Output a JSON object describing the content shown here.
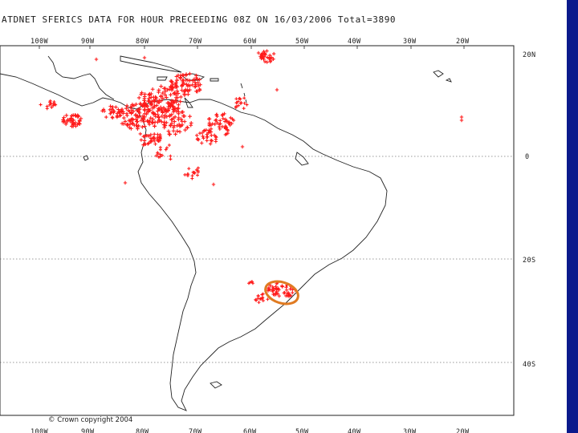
{
  "title": "ATDNET SFERICS DATA FOR HOUR PRECEEDING 08Z ON 16/03/2006 Total=3890",
  "longitude_labels": [
    "100W",
    "90W",
    "80W",
    "70W",
    "60W",
    "50W",
    "40W",
    "30W",
    "20W"
  ],
  "latitude_labels": [
    "20N",
    "0",
    "20S",
    "40S"
  ],
  "copyright": "© Crown copyright 2004",
  "colors": {
    "flash": "#ff1a1a",
    "highlight": "#e07b22",
    "frame_blue": "#0b1a8c",
    "coast": "#222222"
  }
}
